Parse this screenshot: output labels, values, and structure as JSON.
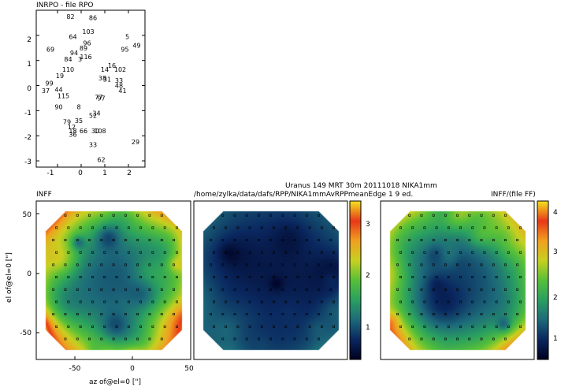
{
  "scatter_panel": {
    "title": "INRPO - file RPO",
    "x_ticks": [
      "-1",
      "0",
      "1",
      "2"
    ],
    "y_ticks": [
      "2",
      "1",
      "0",
      "-1",
      "-2",
      "-3"
    ]
  },
  "header": {
    "line1": "Uranus    149 MRT 30m   20111018 NIKA1mm",
    "line2": "/home/zylka/data/dafs/RPP/NIKA1mmAvRPPmeanEdge 1 9 ed."
  },
  "maps": {
    "left_title": "INFF",
    "right_title": "INFF/(file FF)",
    "x_ticks": [
      "-50",
      "0",
      "50"
    ],
    "y_ticks": [
      "50",
      "0",
      "-50"
    ],
    "x_label": "az of@el=0 [\"]",
    "y_label": "el of@el=0 [\"]"
  },
  "colorbars": {
    "middle_ticks": [
      "3",
      "2",
      "1"
    ],
    "right_ticks": [
      "4",
      "3",
      "2",
      "1"
    ],
    "palette": [
      "#000020",
      "#0a2860",
      "#1d6a7a",
      "#2aa060",
      "#57c038",
      "#c8d020",
      "#f0a020",
      "#e83818",
      "#f4e020"
    ]
  },
  "chart_data": [
    {
      "type": "scatter",
      "title": "INRPO - file RPO",
      "xlim": [
        -1.9,
        2.7
      ],
      "ylim": [
        -3.25,
        3.0
      ],
      "points": [
        {
          "label": "82",
          "x": -0.45,
          "y": 2.75
        },
        {
          "label": "86",
          "x": 0.5,
          "y": 2.7
        },
        {
          "label": "103",
          "x": 0.3,
          "y": 2.15
        },
        {
          "label": "64",
          "x": -0.35,
          "y": 1.95
        },
        {
          "label": "5",
          "x": 1.95,
          "y": 1.95
        },
        {
          "label": "96",
          "x": 0.25,
          "y": 1.7
        },
        {
          "label": "49",
          "x": 2.35,
          "y": 1.6
        },
        {
          "label": "89",
          "x": 0.1,
          "y": 1.5
        },
        {
          "label": "69",
          "x": -1.3,
          "y": 1.45
        },
        {
          "label": "95",
          "x": 1.85,
          "y": 1.45
        },
        {
          "label": "94",
          "x": -0.3,
          "y": 1.3
        },
        {
          "label": "116",
          "x": 0.2,
          "y": 1.15
        },
        {
          "label": "84",
          "x": -0.55,
          "y": 1.05
        },
        {
          "label": "3",
          "x": -0.05,
          "y": 1.05
        },
        {
          "label": "16",
          "x": 1.3,
          "y": 0.8
        },
        {
          "label": "110",
          "x": -0.55,
          "y": 0.65
        },
        {
          "label": "14",
          "x": 1.0,
          "y": 0.65
        },
        {
          "label": "102",
          "x": 1.65,
          "y": 0.65
        },
        {
          "label": "19",
          "x": -0.9,
          "y": 0.4
        },
        {
          "label": "38",
          "x": 0.9,
          "y": 0.3
        },
        {
          "label": "31",
          "x": 1.1,
          "y": 0.25
        },
        {
          "label": "33",
          "x": 1.6,
          "y": 0.2
        },
        {
          "label": "99",
          "x": -1.35,
          "y": 0.1
        },
        {
          "label": "48",
          "x": 1.6,
          "y": 0.0
        },
        {
          "label": "37",
          "x": -1.5,
          "y": -0.2
        },
        {
          "label": "44",
          "x": -0.95,
          "y": -0.15
        },
        {
          "label": "41",
          "x": 1.75,
          "y": -0.2
        },
        {
          "label": "115",
          "x": -0.75,
          "y": -0.4
        },
        {
          "label": "77",
          "x": 0.75,
          "y": -0.45
        },
        {
          "label": "97",
          "x": 0.85,
          "y": -0.5
        },
        {
          "label": "90",
          "x": -0.95,
          "y": -0.85
        },
        {
          "label": "8",
          "x": -0.1,
          "y": -0.85
        },
        {
          "label": "34",
          "x": 0.65,
          "y": -1.1
        },
        {
          "label": "52",
          "x": 0.5,
          "y": -1.2
        },
        {
          "label": "79",
          "x": -0.6,
          "y": -1.45
        },
        {
          "label": "35",
          "x": -0.1,
          "y": -1.4
        },
        {
          "label": "12",
          "x": -0.4,
          "y": -1.65
        },
        {
          "label": "66",
          "x": 0.1,
          "y": -1.8
        },
        {
          "label": "30",
          "x": 0.6,
          "y": -1.8
        },
        {
          "label": "108",
          "x": 0.8,
          "y": -1.8
        },
        {
          "label": "18",
          "x": -0.35,
          "y": -1.8
        },
        {
          "label": "36",
          "x": -0.35,
          "y": -1.95
        },
        {
          "label": "33",
          "x": 0.5,
          "y": -2.35
        },
        {
          "label": "29",
          "x": 2.3,
          "y": -2.25
        },
        {
          "label": "62",
          "x": 0.85,
          "y": -2.95
        }
      ]
    },
    {
      "type": "heatmap",
      "title": "INFF",
      "xlim": [
        -80,
        50
      ],
      "ylim": [
        -78,
        60
      ],
      "xlabel": "az of@el=0 [\"]",
      "ylabel": "el of@el=0 [\"]"
    },
    {
      "type": "heatmap",
      "title": "",
      "colorbar": {
        "range": [
          0.4,
          3.4
        ],
        "ticks": [
          1,
          2,
          3
        ]
      }
    },
    {
      "type": "heatmap",
      "title": "INFF/(file FF)",
      "colorbar": {
        "range": [
          0.3,
          4.3
        ],
        "ticks": [
          1,
          2,
          3,
          4
        ]
      }
    }
  ]
}
